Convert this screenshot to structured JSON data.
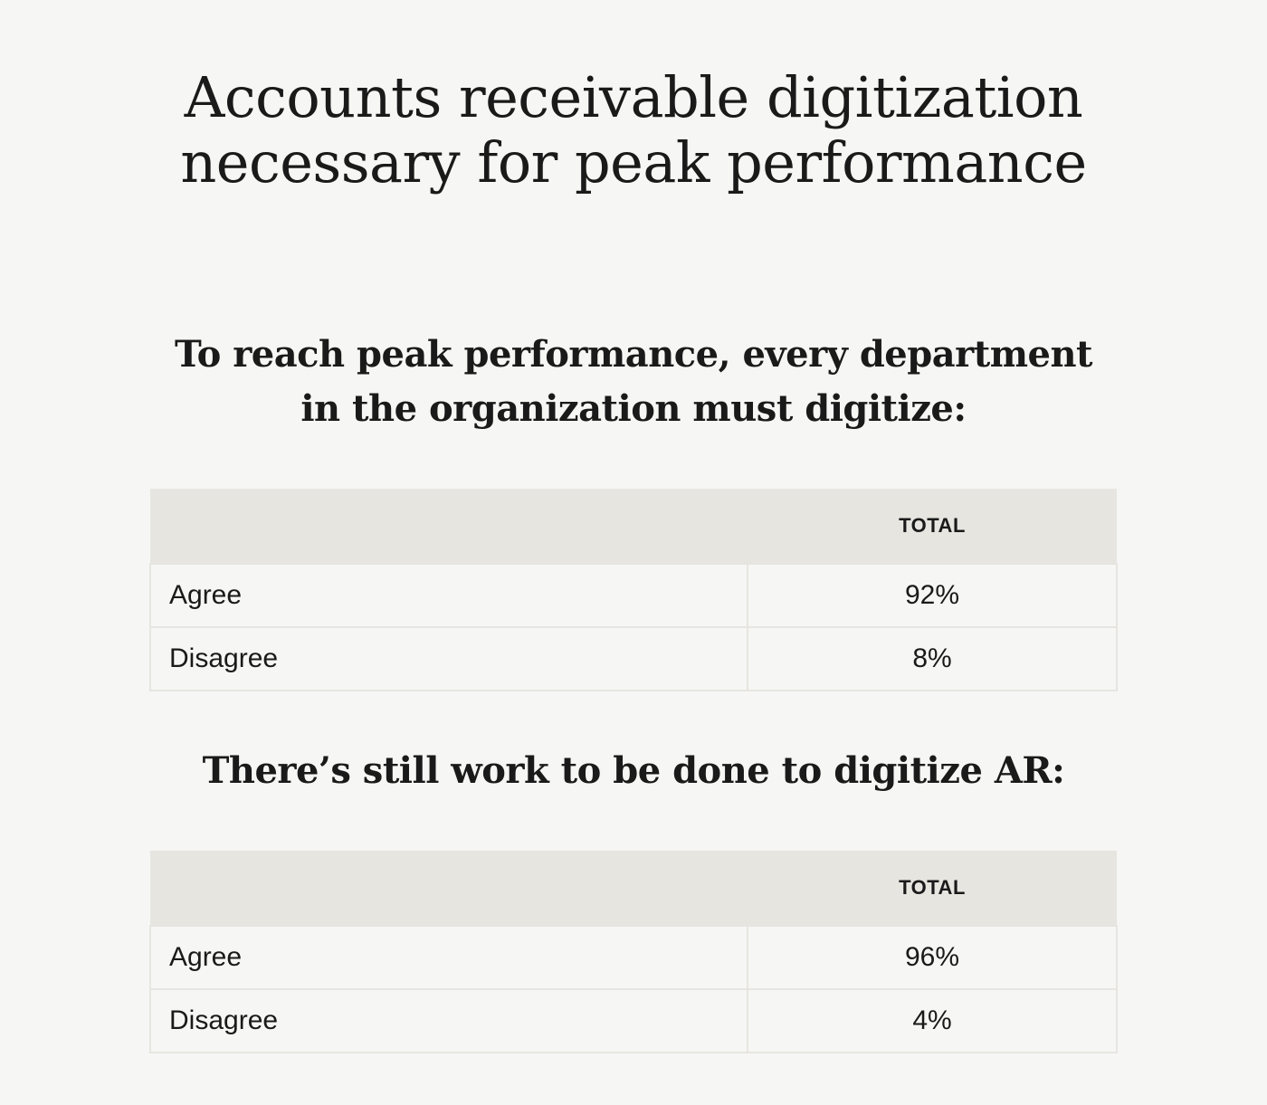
{
  "title_lines": [
    "Accounts receivable digitization",
    "necessary for peak performance"
  ],
  "chart_data": [
    {
      "type": "table",
      "title_lines": [
        "To reach peak performance, every department",
        "in the organization must digitize:"
      ],
      "columns": [
        "",
        "TOTAL"
      ],
      "rows": [
        {
          "label": "Agree",
          "value": "92%"
        },
        {
          "label": "Disagree",
          "value": "8%"
        }
      ]
    },
    {
      "type": "table",
      "title_lines": [
        "There’s still work to be done to digitize AR:"
      ],
      "columns": [
        "",
        "TOTAL"
      ],
      "rows": [
        {
          "label": "Agree",
          "value": "96%"
        },
        {
          "label": "Disagree",
          "value": "4%"
        }
      ]
    }
  ],
  "colors": {
    "background": "#f6f6f4",
    "header_fill": "#e6e5e0",
    "text": "#1a1a1a"
  }
}
